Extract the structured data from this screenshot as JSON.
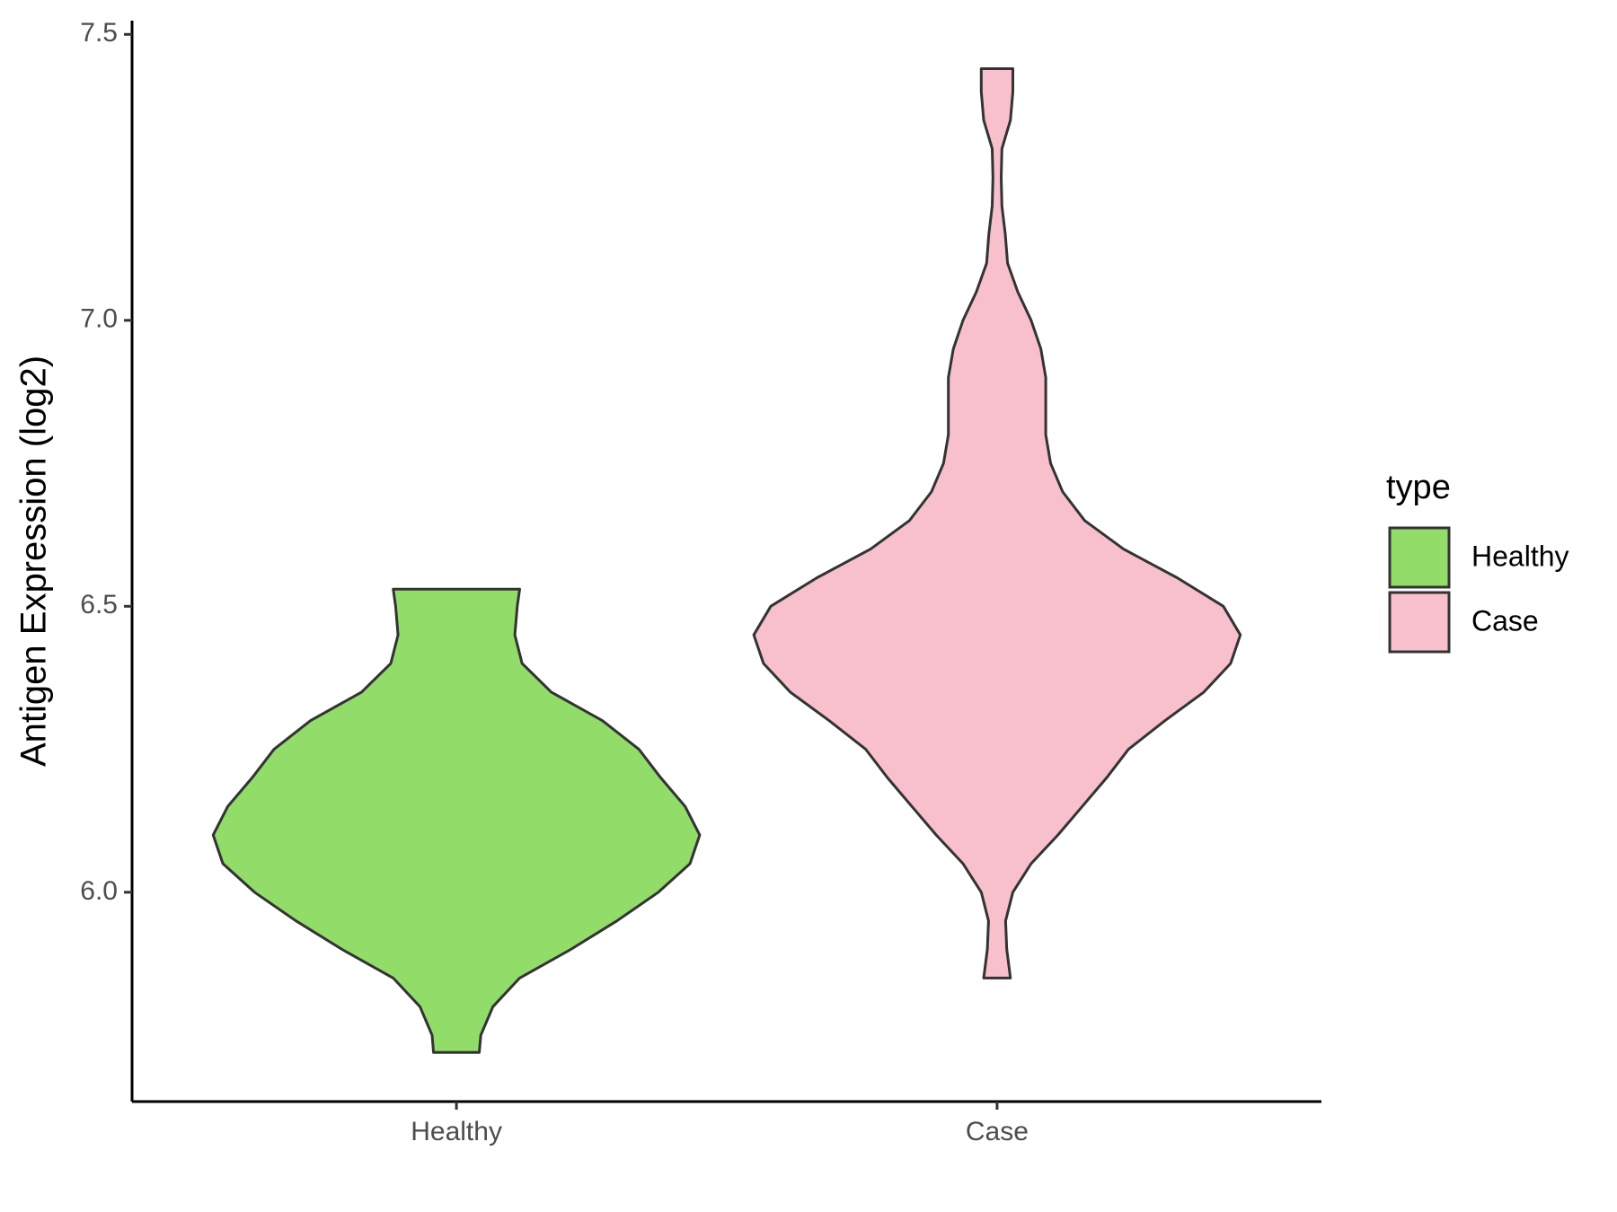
{
  "chart_data": {
    "type": "violin",
    "y_label": "Antigen Expression (log2)",
    "categories": [
      "Healthy",
      "Case"
    ],
    "legend_title": "type",
    "legend_position": "right",
    "ylim": [
      5.634,
      7.524
    ],
    "yticks": [
      {
        "value": 6,
        "label": "6.0"
      },
      6.5,
      {
        "value": 7,
        "label": "7.0"
      },
      7.5
    ],
    "series": [
      {
        "name": "Healthy",
        "color": "#92dc6a",
        "y": [
          5.72,
          5.75,
          5.8,
          5.85,
          5.9,
          5.95,
          6.0,
          6.05,
          6.1,
          6.15,
          6.2,
          6.25,
          6.3,
          6.35,
          6.4,
          6.45,
          6.5,
          6.53
        ],
        "density": [
          0.094,
          0.1,
          0.15,
          0.26,
          0.47,
          0.66,
          0.83,
          0.96,
          1.0,
          0.94,
          0.84,
          0.75,
          0.6,
          0.39,
          0.27,
          0.24,
          0.25,
          0.26
        ]
      },
      {
        "name": "Case",
        "color": "#f7c0cc",
        "y": [
          5.85,
          5.9,
          5.95,
          6.0,
          6.05,
          6.1,
          6.15,
          6.2,
          6.25,
          6.3,
          6.35,
          6.4,
          6.45,
          6.5,
          6.55,
          6.6,
          6.65,
          6.7,
          6.75,
          6.8,
          6.9,
          6.95,
          7.0,
          7.05,
          7.1,
          7.15,
          7.2,
          7.25,
          7.3,
          7.35,
          7.4,
          7.44
        ],
        "density": [
          0.055,
          0.04,
          0.035,
          0.065,
          0.14,
          0.25,
          0.35,
          0.45,
          0.54,
          0.69,
          0.85,
          0.96,
          1.0,
          0.93,
          0.74,
          0.52,
          0.36,
          0.27,
          0.22,
          0.2,
          0.2,
          0.18,
          0.14,
          0.085,
          0.043,
          0.034,
          0.02,
          0.017,
          0.02,
          0.055,
          0.065,
          0.065
        ]
      }
    ]
  }
}
